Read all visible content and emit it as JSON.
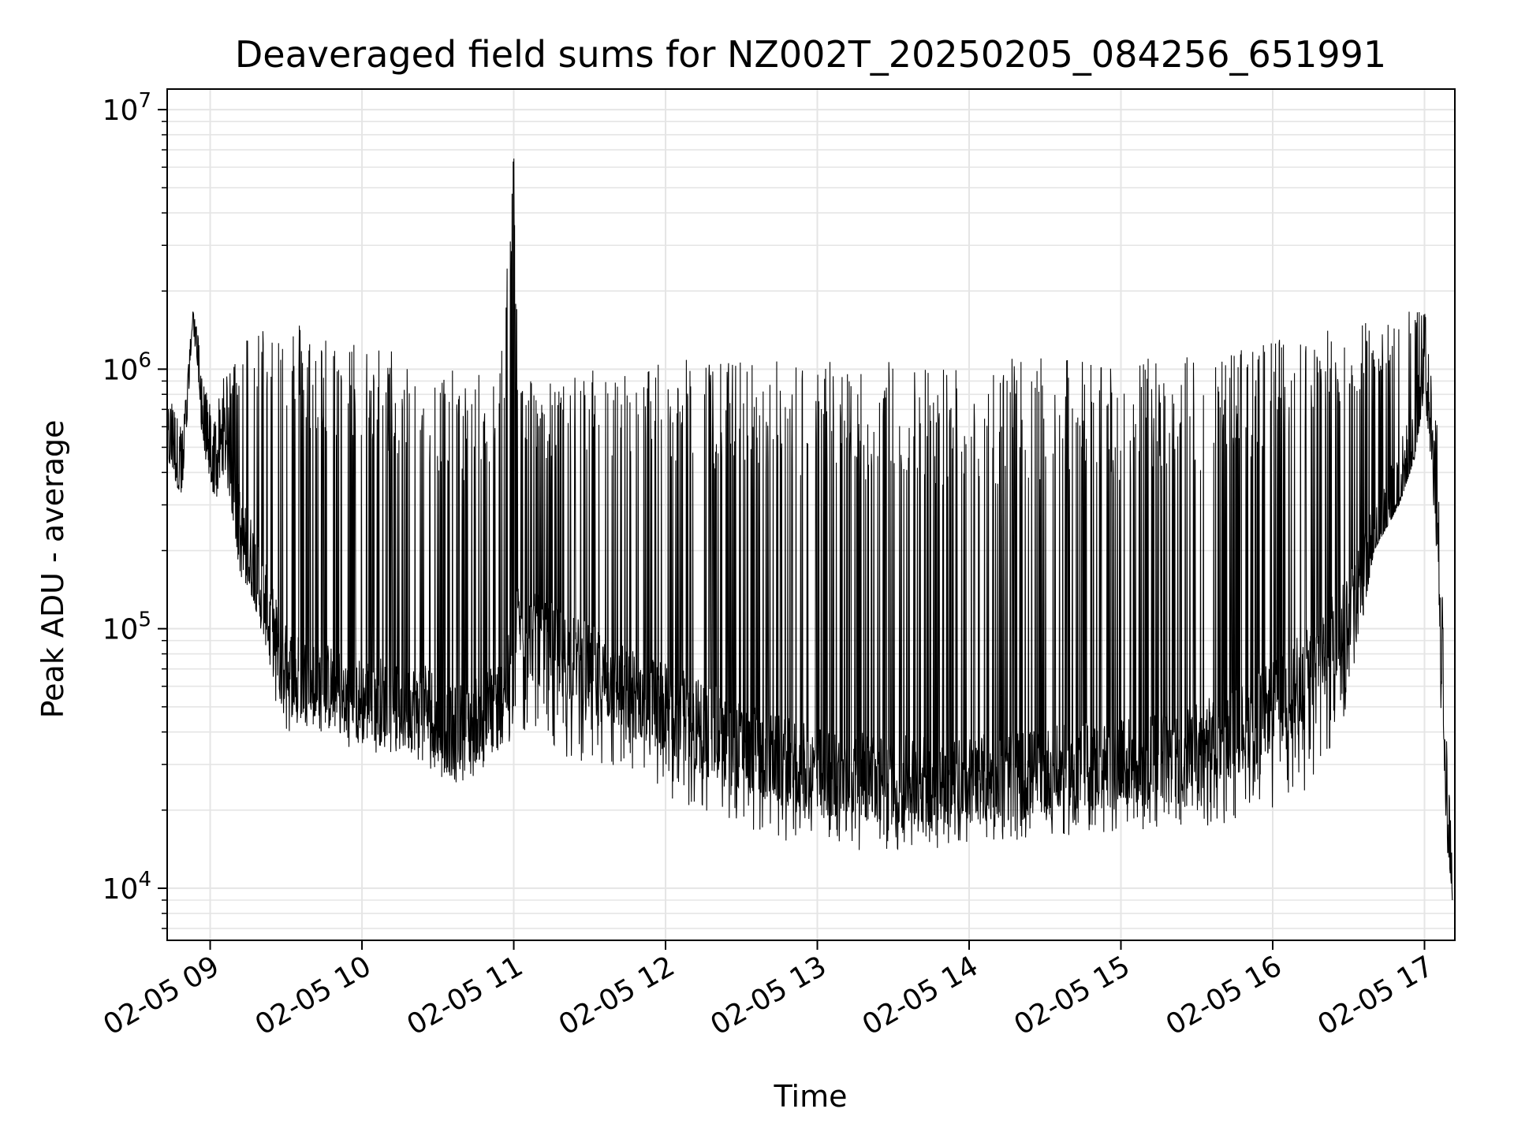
{
  "chart_data": {
    "type": "line",
    "title": "Deaveraged field sums for NZ002T_20250205_084256_651991",
    "xlabel": "Time",
    "ylabel": "Peak ADU - average",
    "yscale": "log",
    "ylim": [
      6300,
      12000000
    ],
    "xlim": [
      "02-05 08:43",
      "02-05 17:12"
    ],
    "x_ticks": [
      "02-05 09",
      "02-05 10",
      "02-05 11",
      "02-05 12",
      "02-05 13",
      "02-05 14",
      "02-05 15",
      "02-05 16",
      "02-05 17"
    ],
    "y_ticks": [
      {
        "base": "10",
        "exp": "4",
        "value": 10000
      },
      {
        "base": "10",
        "exp": "5",
        "value": 100000
      },
      {
        "base": "10",
        "exp": "6",
        "value": 1000000
      },
      {
        "base": "10",
        "exp": "7",
        "value": 10000000
      }
    ],
    "grid": true,
    "line_color": "#000000",
    "grid_color": "#e5e5e5",
    "series": [
      {
        "x": [
          "08:43",
          "08:45",
          "08:47",
          "08:49",
          "08:51",
          "08:53",
          "08:55",
          "08:57",
          "08:59",
          "09:02",
          "09:04",
          "09:06",
          "09:08",
          "09:10",
          "09:12",
          "09:14",
          "09:17",
          "09:20",
          "09:23",
          "09:26",
          "09:30",
          "09:35",
          "09:40",
          "09:45",
          "09:50",
          "09:55",
          "10:00",
          "10:05",
          "10:10",
          "10:15",
          "10:20",
          "10:25",
          "10:30",
          "10:35",
          "10:40",
          "10:45",
          "10:50",
          "10:55",
          "11:00",
          "11:01",
          "11:02",
          "11:03",
          "11:05",
          "11:10",
          "11:15",
          "11:20",
          "11:25",
          "11:30",
          "11:40",
          "11:50",
          "12:00",
          "12:10",
          "12:20",
          "12:30",
          "12:40",
          "12:50",
          "13:00",
          "13:15",
          "13:30",
          "13:45",
          "14:00",
          "14:15",
          "14:30",
          "14:45",
          "15:00",
          "15:15",
          "15:30",
          "15:45",
          "16:00",
          "16:15",
          "16:30",
          "16:40",
          "16:50",
          "16:56",
          "17:00",
          "17:03",
          "17:05",
          "17:07",
          "17:09",
          "17:11"
        ],
        "base": [
          500000,
          550000,
          450000,
          380000,
          700000,
          1650000,
          1200000,
          650000,
          500000,
          400000,
          500000,
          550000,
          450000,
          300000,
          220000,
          200000,
          180000,
          140000,
          110000,
          90000,
          70000,
          65000,
          62000,
          60000,
          58000,
          55000,
          52000,
          55000,
          50000,
          48000,
          50000,
          52000,
          45000,
          40000,
          42000,
          45000,
          48000,
          55000,
          70000,
          90000,
          110000,
          100000,
          95000,
          90000,
          85000,
          80000,
          75000,
          70000,
          60000,
          55000,
          50000,
          45000,
          40000,
          35000,
          32000,
          30000,
          28000,
          27000,
          26000,
          26000,
          26000,
          27000,
          28000,
          29000,
          30000,
          32000,
          35000,
          40000,
          50000,
          70000,
          120000,
          200000,
          350000,
          500000,
          1000000,
          600000,
          250000,
          60000,
          20000,
          12000
        ],
        "peak": [
          700000,
          750000,
          700000,
          600000,
          900000,
          1700000,
          1400000,
          900000,
          800000,
          700000,
          800000,
          1000000,
          1000000,
          1200000,
          1300000,
          1400000,
          1500000,
          1600000,
          1650000,
          1700000,
          1650000,
          1600000,
          1500000,
          1450000,
          1400000,
          1350000,
          1300000,
          1300000,
          1250000,
          1200000,
          1150000,
          1100000,
          1050000,
          1000000,
          950000,
          950000,
          1000000,
          1200000,
          8500000,
          2300000,
          1300000,
          1100000,
          1000000,
          950000,
          900000,
          900000,
          950000,
          1000000,
          1000000,
          1050000,
          1050000,
          1100000,
          1100000,
          1100000,
          1100000,
          1100000,
          1100000,
          1100000,
          1100000,
          1100000,
          1100000,
          1100000,
          1100000,
          1100000,
          1100000,
          1100000,
          1150000,
          1200000,
          1300000,
          1400000,
          1500000,
          1600000,
          1700000,
          1750000,
          1800000,
          1300000,
          600000,
          150000,
          30000,
          15000
        ],
        "trough": [
          450000,
          420000,
          350000,
          330000,
          650000,
          1500000,
          1000000,
          500000,
          420000,
          300000,
          380000,
          400000,
          300000,
          200000,
          160000,
          150000,
          130000,
          100000,
          80000,
          45000,
          40000,
          40000,
          40000,
          38000,
          36000,
          35000,
          34000,
          33000,
          32000,
          30000,
          30000,
          28000,
          27000,
          25000,
          26000,
          27000,
          28000,
          30000,
          35000,
          40000,
          45000,
          40000,
          38000,
          36000,
          34000,
          32000,
          30000,
          28000,
          26000,
          25000,
          22000,
          20000,
          18000,
          17000,
          16000,
          15000,
          15000,
          14000,
          14000,
          14000,
          15000,
          15000,
          16000,
          16000,
          16000,
          17000,
          17000,
          18000,
          20000,
          22000,
          50000,
          200000,
          300000,
          450000,
          800000,
          400000,
          150000,
          30000,
          13000,
          9000
        ]
      }
    ]
  }
}
